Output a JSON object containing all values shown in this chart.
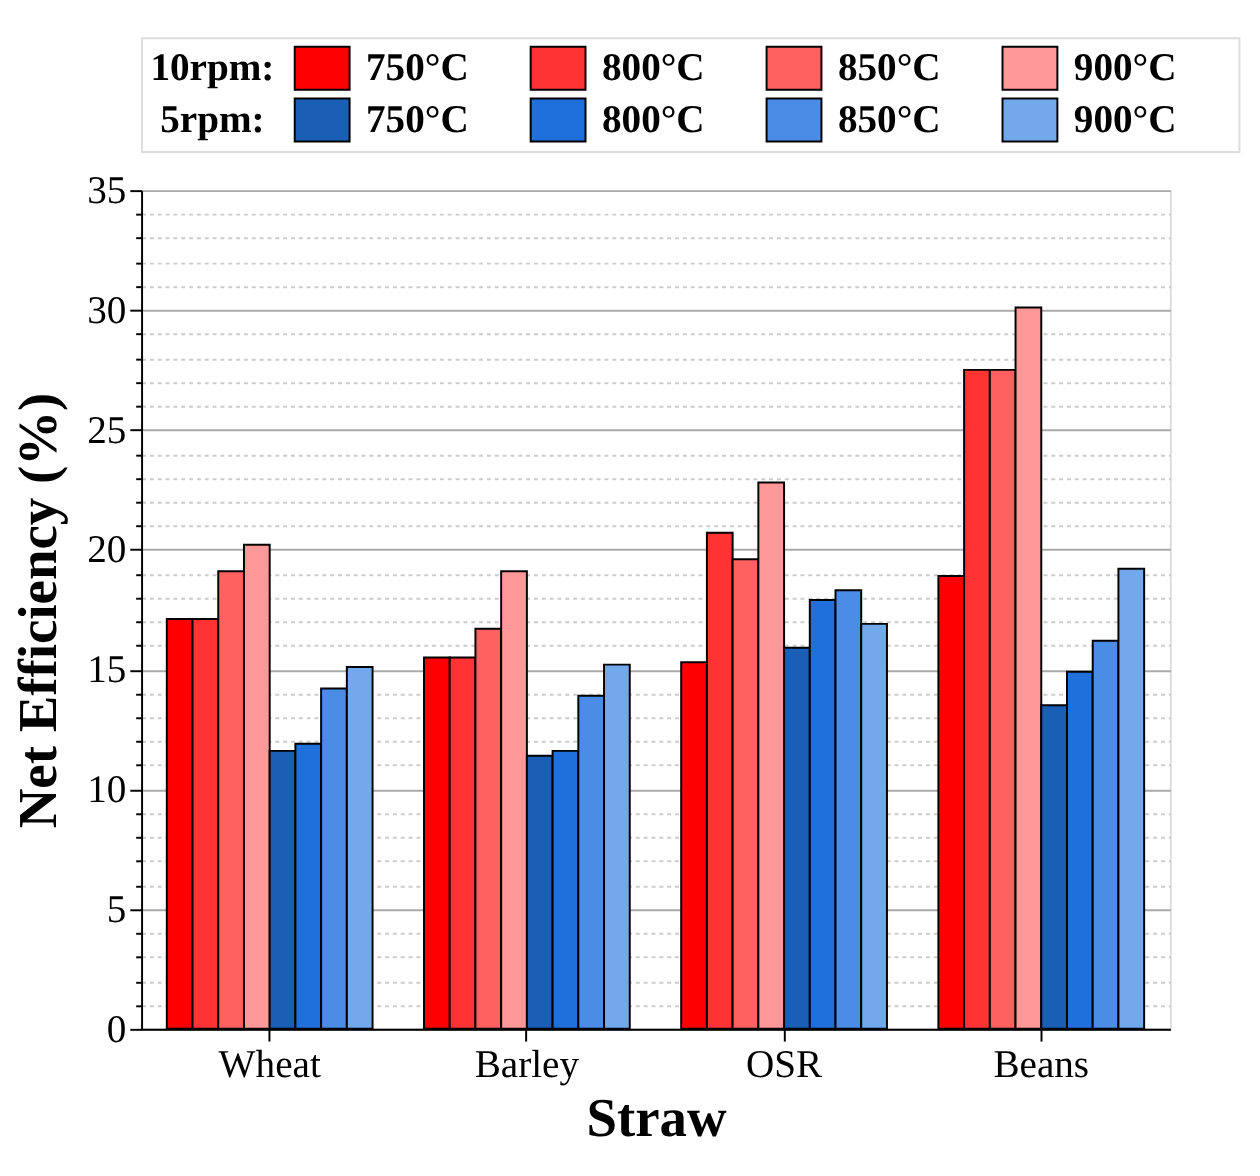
{
  "chart_data": {
    "type": "bar",
    "xlabel": "Straw",
    "ylabel": "Net Efficiency (%)",
    "categories": [
      "Wheat",
      "Barley",
      "OSR",
      "Beans"
    ],
    "series": [
      {
        "name": "750°C",
        "color": "#ff0000",
        "values": [
          17.1,
          15.5,
          15.3,
          18.9
        ]
      },
      {
        "name": "800°C",
        "color": "#ff3333",
        "values": [
          17.1,
          15.5,
          20.7,
          27.5
        ]
      },
      {
        "name": "850°C",
        "color": "#ff6161",
        "values": [
          19.1,
          16.7,
          19.6,
          27.5
        ]
      },
      {
        "name": "900°C",
        "color": "#ff9999",
        "values": [
          20.2,
          19.1,
          22.8,
          30.1
        ]
      },
      {
        "name": "750°C",
        "color": "#1a5eb5",
        "values": [
          11.6,
          11.4,
          15.9,
          13.5
        ]
      },
      {
        "name": "800°C",
        "color": "#1f6fdc",
        "values": [
          11.9,
          11.6,
          17.9,
          14.9
        ]
      },
      {
        "name": "850°C",
        "color": "#4a8ce6",
        "values": [
          14.2,
          13.9,
          18.3,
          16.2
        ]
      },
      {
        "name": "900°C",
        "color": "#72a9ec",
        "values": [
          15.1,
          15.2,
          16.9,
          19.2
        ]
      }
    ],
    "annotations": [
      "10rpm:",
      "5rpm:"
    ],
    "ylim": [
      0,
      35
    ],
    "yticks": [
      0,
      {
        "value": 1,
        "label": null
      },
      {
        "value": 2,
        "label": null
      },
      {
        "value": 3,
        "label": null
      },
      {
        "value": 4,
        "label": null
      },
      5,
      {
        "value": 6,
        "label": null
      },
      {
        "value": 7,
        "label": null
      },
      {
        "value": 8,
        "label": null
      },
      {
        "value": 9,
        "label": null
      },
      10,
      {
        "value": 11,
        "label": null
      },
      {
        "value": 12,
        "label": null
      },
      {
        "value": 13,
        "label": null
      },
      {
        "value": 14,
        "label": null
      },
      15,
      {
        "value": 16,
        "label": null
      },
      {
        "value": 17,
        "label": null
      },
      {
        "value": 18,
        "label": null
      },
      {
        "value": 19,
        "label": null
      },
      20,
      {
        "value": 21,
        "label": null
      },
      {
        "value": 22,
        "label": null
      },
      {
        "value": 23,
        "label": null
      },
      {
        "value": 24,
        "label": null
      },
      25,
      {
        "value": 26,
        "label": null
      },
      {
        "value": 27,
        "label": null
      },
      {
        "value": 28,
        "label": null
      },
      {
        "value": 29,
        "label": null
      },
      30,
      {
        "value": 31,
        "label": null
      },
      {
        "value": 32,
        "label": null
      },
      {
        "value": 33,
        "label": null
      },
      {
        "value": 34,
        "label": null
      },
      35
    ],
    "grid": true,
    "legend": "top"
  }
}
